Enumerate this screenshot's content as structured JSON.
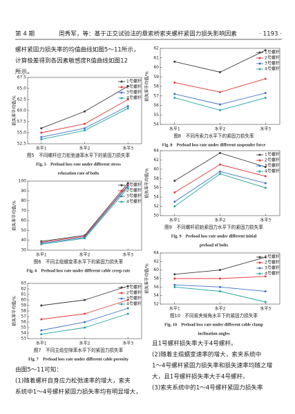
{
  "header": {
    "issue": "第 4 期",
    "running_title": "周秀军，等：基于正交试验法的悬索桥索夹螺杆紧固力损失影响因素",
    "page": "· 1193 ·"
  },
  "text": {
    "left_top": [
      "螺杆紧固力损失率的均值曲线如图5～11所示，",
      "计算极差得到各因素敏感度R值曲线如图12",
      "所示。"
    ],
    "left_bottom": [
      "由图5～11可知：",
      "(1)随着螺杆自身应力松弛速率的增大，索夹",
      "系统中1～4号螺杆紧固力损失率均有明显增大，"
    ],
    "right_bottom": [
      "且1号螺杆损失率大于4号螺杆。",
      "(2)随着主缆蠕变速率的增大，索夹系统中",
      "1～4号螺杆紧固力损失率和损失速率均随之增",
      "大，且1号螺杆损失率大于4号螺杆。",
      "(3)索夹系统中的1～4号螺杆紧固力损失率"
    ]
  },
  "chart_data": [
    {
      "type": "line",
      "caption": "图5　不同螺杆应力松弛速率水平下的紧固力损失率",
      "caption_en": [
        "Fig. 5　Preload loss rate under different stress",
        "relaxation rate of bolts"
      ],
      "y_label": "损失率平均值/%",
      "categories": [
        "水平1",
        "水平2",
        "水平3"
      ],
      "legend": "upper right",
      "ylim": [
        52.5,
        67.5
      ],
      "yticks": [
        52.5,
        {
          "value": 55,
          "label": "55.0"
        },
        57.5,
        {
          "value": 60,
          "label": "60.0"
        },
        62.5,
        {
          "value": 65,
          "label": "65.0"
        },
        67.5
      ],
      "series": [
        {
          "name": "1号螺杆",
          "color": "#3a3a3a",
          "values": [
            56.0,
            59.8,
            65.5
          ]
        },
        {
          "name": "2号螺杆",
          "color": "#e0393e",
          "values": [
            55.0,
            57.0,
            62.5
          ]
        },
        {
          "name": "3号螺杆",
          "color": "#3b6fc6",
          "values": [
            54.0,
            56.0,
            61.0
          ]
        },
        {
          "name": "4号螺杆",
          "color": "#1fa39a",
          "values": [
            53.5,
            55.5,
            60.5
          ]
        }
      ]
    },
    {
      "type": "line",
      "caption": "图8　不同吊索力水平下的紧固力损失率",
      "caption_en": [
        "Fig. 8　Preload loss rate under different suspender force"
      ],
      "y_label": "损失率平均值/%",
      "categories": [
        "水平1",
        "水平2",
        "水平3"
      ],
      "legend": "upper right",
      "ylim": [
        54,
        62
      ],
      "yticks": [
        54,
        55,
        56,
        57,
        58,
        59,
        60,
        61,
        62
      ],
      "series": [
        {
          "name": "1号螺杆",
          "color": "#3a3a3a",
          "values": [
            60.6,
            59.5,
            61.8
          ]
        },
        {
          "name": "2号螺杆",
          "color": "#e0393e",
          "values": [
            58.4,
            57.4,
            58.8
          ]
        },
        {
          "name": "3号螺杆",
          "color": "#3b6fc6",
          "values": [
            57.2,
            56.1,
            57.3
          ]
        },
        {
          "name": "4号螺杆",
          "color": "#1fa39a",
          "values": [
            56.8,
            55.5,
            56.8
          ]
        }
      ]
    },
    {
      "type": "line",
      "caption": "图6　不同主缆蠕变率水平下的紧固力损失率",
      "caption_en": [
        "Fig. 6　Preload loss rate under different cable creep rate"
      ],
      "y_label": "损失率平均值/%",
      "categories": [
        "水平1",
        "水平2",
        "水平3"
      ],
      "legend": "upper right",
      "ylim": [
        30,
        100
      ],
      "yticks": [
        30,
        40,
        50,
        60,
        70,
        80,
        90,
        100
      ],
      "series": [
        {
          "name": "1号螺杆",
          "color": "#3a3a3a",
          "values": [
            39,
            45,
            98
          ]
        },
        {
          "name": "2号螺杆",
          "color": "#e0393e",
          "values": [
            38,
            44,
            96
          ]
        },
        {
          "name": "3号螺杆",
          "color": "#3b6fc6",
          "values": [
            37,
            43,
            95
          ]
        },
        {
          "name": "4号螺杆",
          "color": "#1fa39a",
          "values": [
            36,
            42,
            93
          ]
        }
      ]
    },
    {
      "type": "line",
      "caption": "图9　不同螺杆初始紧固力水平下的紧固力损失率",
      "caption_en": [
        "Fig. 9　Preload loss rate under different initial",
        "preload of bolts"
      ],
      "y_label": "损失率平均值/%",
      "categories": [
        "水平1",
        "水平2",
        "水平3"
      ],
      "legend": "upper right",
      "ylim": [
        50,
        64
      ],
      "yticks": [
        50,
        52,
        54,
        56,
        58,
        60,
        62,
        64
      ],
      "series": [
        {
          "name": "1号螺杆",
          "color": "#3a3a3a",
          "values": [
            57.5,
            63.5,
            60.5
          ]
        },
        {
          "name": "2号螺杆",
          "color": "#e0393e",
          "values": [
            55,
            61,
            58.5
          ]
        },
        {
          "name": "3号螺杆",
          "color": "#3b6fc6",
          "values": [
            53,
            59.5,
            57
          ]
        },
        {
          "name": "4号螺杆",
          "color": "#1fa39a",
          "values": [
            52,
            59,
            56
          ]
        }
      ]
    },
    {
      "type": "line",
      "caption": "图7　不同主缆空隙率水平下的紧固力损失率",
      "caption_en": [
        "Fig. 7　Preload loss rate under different cable porosity"
      ],
      "y_label": "损失率平均值/%",
      "categories": [
        "水平1",
        "水平2",
        "水平3"
      ],
      "legend": "upper right",
      "ylim": [
        53,
        63
      ],
      "yticks": [
        53,
        54,
        55,
        56,
        57,
        58,
        59,
        60,
        61,
        62,
        63
      ],
      "series": [
        {
          "name": "1号螺杆",
          "color": "#3a3a3a",
          "values": [
            59,
            60,
            62.5
          ]
        },
        {
          "name": "2号螺杆",
          "color": "#e0393e",
          "values": [
            56.5,
            57.5,
            60
          ]
        },
        {
          "name": "3号螺杆",
          "color": "#3b6fc6",
          "values": [
            54.5,
            56,
            58.5
          ]
        },
        {
          "name": "4号螺杆",
          "color": "#1fa39a",
          "values": [
            53.8,
            55,
            57.5
          ]
        }
      ]
    },
    {
      "type": "line",
      "caption": "图10　不同索夹倾角水平下的紧固力损失率",
      "caption_en": [
        "Fig. 10　Preload loss rate under different cable clamp",
        "inclination angles"
      ],
      "y_label": "损失率平均值/%",
      "categories": [
        "水平1",
        "水平2",
        "水平3"
      ],
      "legend": "upper right",
      "ylim": [
        52,
        64
      ],
      "yticks": [
        52,
        54,
        56,
        58,
        60,
        62,
        64
      ],
      "series": [
        {
          "name": "1号螺杆",
          "color": "#3a3a3a",
          "values": [
            59,
            60,
            63
          ]
        },
        {
          "name": "2号螺杆",
          "color": "#e0393e",
          "values": [
            58,
            58,
            58.5
          ]
        },
        {
          "name": "3号螺杆",
          "color": "#3b6fc6",
          "values": [
            56.5,
            56,
            55
          ]
        },
        {
          "name": "4号螺杆",
          "color": "#1fa39a",
          "values": [
            56,
            55,
            52.5
          ]
        }
      ]
    }
  ]
}
